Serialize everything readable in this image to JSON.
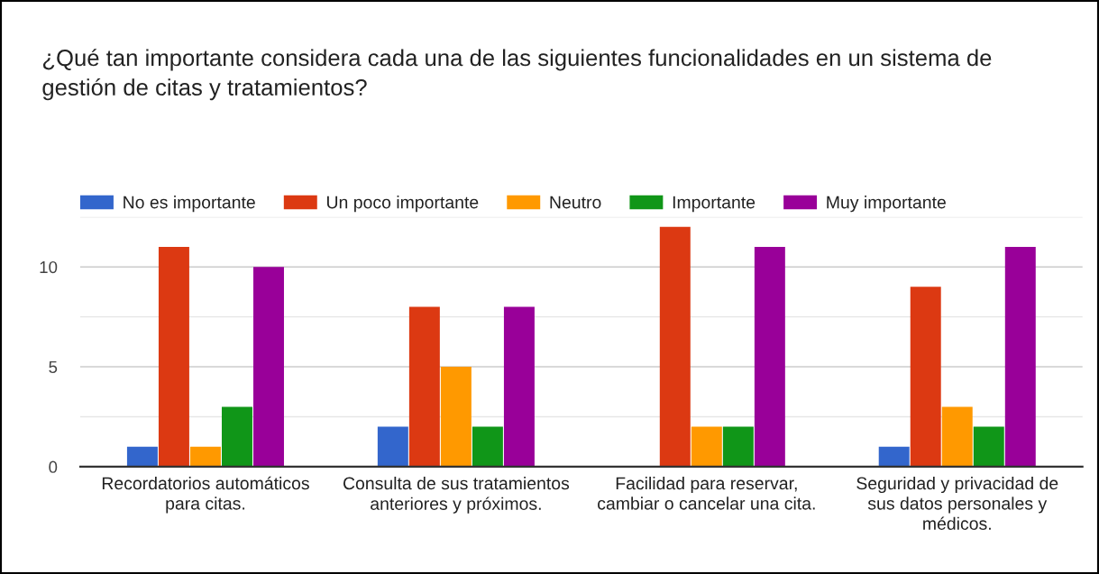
{
  "chart_data": {
    "type": "bar",
    "title": "¿Qué tan importante considera cada una de las siguientes funcionalidades en un sistema de\ngestión de citas y tratamientos?",
    "categories": [
      "Recordatorios automáticos\npara citas.",
      "Consulta de sus tratamientos\nanteriores y próximos.",
      "Facilidad para reservar,\ncambiar o cancelar una cita.",
      "Seguridad y privacidad de\nsus datos personales y\nmédicos."
    ],
    "series": [
      {
        "name": "No es importante",
        "color": "#3366cc",
        "values": [
          1,
          2,
          0,
          1
        ]
      },
      {
        "name": "Un poco importante",
        "color": "#dc3912",
        "values": [
          11,
          8,
          12,
          9
        ]
      },
      {
        "name": "Neutro",
        "color": "#ff9900",
        "values": [
          1,
          5,
          2,
          3
        ]
      },
      {
        "name": "Importante",
        "color": "#109618",
        "values": [
          3,
          2,
          2,
          2
        ]
      },
      {
        "name": "Muy importante",
        "color": "#990099",
        "values": [
          10,
          8,
          11,
          11
        ]
      }
    ],
    "ylim": [
      0,
      12.5
    ],
    "yticks": [
      0,
      {
        "value": 2.5,
        "label": null
      },
      5,
      {
        "value": 7.5,
        "label": null
      },
      10,
      {
        "value": 12.5,
        "label": null
      }
    ],
    "grid": "y",
    "legend": "top"
  }
}
